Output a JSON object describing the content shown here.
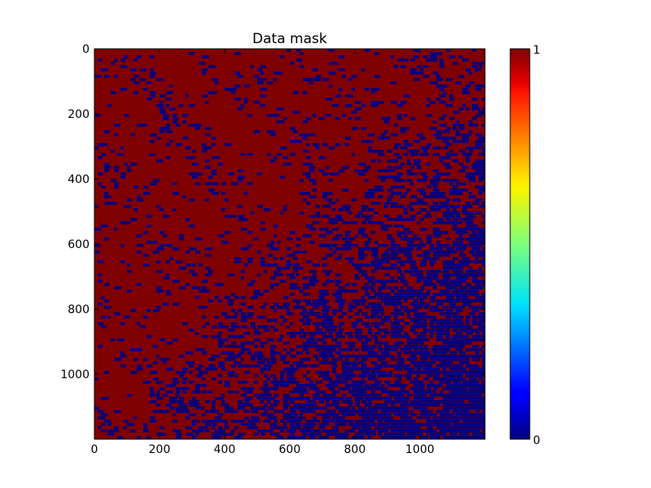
{
  "chart_data": {
    "type": "heatmap",
    "title": "Data mask",
    "xlim": [
      0,
      1200
    ],
    "ylim": [
      1200,
      0
    ],
    "x_ticks": [
      0,
      200,
      400,
      600,
      800,
      1000
    ],
    "y_ticks": [
      0,
      200,
      400,
      600,
      800,
      1000
    ],
    "x_tick_labels": [
      "0",
      "200",
      "400",
      "600",
      "800",
      "1000"
    ],
    "y_tick_labels": [
      "0",
      "200",
      "400",
      "600",
      "800",
      "1000"
    ],
    "values": [
      0,
      1
    ],
    "colormap": "jet",
    "colors": {
      "value_0": "#00007f",
      "value_1": "#7f0000"
    },
    "colorbar": {
      "range": [
        0,
        1
      ],
      "tick_labels": [
        "1",
        "0"
      ]
    },
    "grid": false
  }
}
